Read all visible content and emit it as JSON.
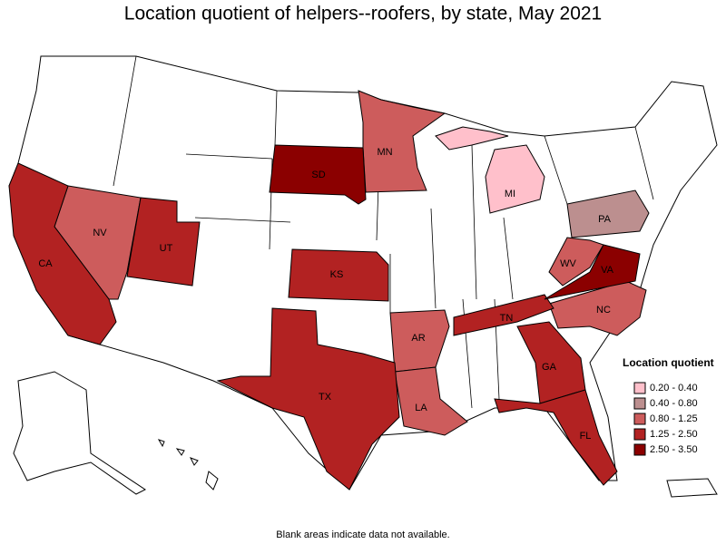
{
  "title": "Location quotient of helpers--roofers, by state, May 2021",
  "legend": {
    "title": "Location quotient",
    "items": [
      {
        "label": "0.20 - 0.40",
        "color": "#ffc0cb",
        "states": [
          "MI"
        ]
      },
      {
        "label": "0.40 - 0.80",
        "color": "#bc8f8f",
        "states": [
          "PA"
        ]
      },
      {
        "label": "0.80 - 1.25",
        "color": "#cd5c5c",
        "states": [
          "NV",
          "MN",
          "WV",
          "NC",
          "AR",
          "LA"
        ]
      },
      {
        "label": "1.25 - 2.50",
        "color": "#b22222",
        "states": [
          "CA",
          "UT",
          "KS",
          "TX",
          "TN",
          "GA",
          "FL"
        ]
      },
      {
        "label": "2.50 - 3.50",
        "color": "#8b0000",
        "states": [
          "SD",
          "VA"
        ]
      }
    ]
  },
  "footnote": "Blank areas indicate data not available."
}
